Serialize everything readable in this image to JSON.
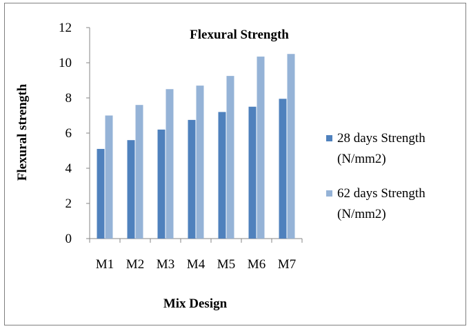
{
  "chart_data": {
    "type": "bar",
    "title": "Flexural Strength",
    "xlabel": "Mix Design",
    "ylabel": "Flexural strength",
    "categories": [
      "M1",
      "M2",
      "M3",
      "M4",
      "M5",
      "M6",
      "M7"
    ],
    "series": [
      {
        "name": "28 days Strength (N/mm2)",
        "color": "#4f81bd",
        "values": [
          5.1,
          5.6,
          6.2,
          6.75,
          7.2,
          7.5,
          7.95
        ]
      },
      {
        "name": "62 days Strength (N/mm2)",
        "color": "#95b3d7",
        "values": [
          7.0,
          7.6,
          8.5,
          8.7,
          9.25,
          10.35,
          10.5
        ]
      }
    ],
    "ylim": [
      0,
      12
    ],
    "yticks": [
      "0",
      "2",
      "4",
      "6",
      "8",
      "10",
      "12"
    ],
    "grid": false,
    "legend": "right",
    "legend_lines": [
      [
        "28 days Strength",
        "(N/mm2)"
      ],
      [
        "62 days Strength",
        "(N/mm2)"
      ]
    ]
  }
}
